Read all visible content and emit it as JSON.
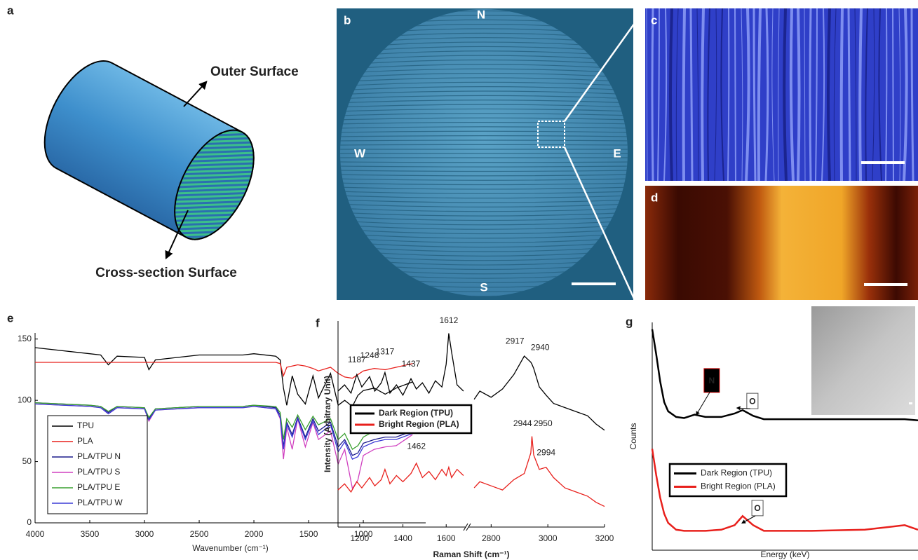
{
  "panels": {
    "a": {
      "label": "a",
      "outer": "Outer Surface",
      "cross": "Cross-section Surface"
    },
    "b": {
      "label": "b",
      "north": "N",
      "west": "W",
      "east": "E",
      "south": "S"
    },
    "c": {
      "label": "c"
    },
    "d": {
      "label": "d"
    }
  },
  "chart_data": [
    {
      "label": "e",
      "type": "line",
      "xlabel": "Wavenumber (cm⁻¹)",
      "x": [
        4000,
        3500,
        3400,
        3330,
        3250,
        3000,
        2960,
        2900,
        2500,
        2100,
        2000,
        1800,
        1760,
        1730,
        1700,
        1650,
        1600,
        1530,
        1460,
        1410,
        1300,
        1230,
        1170,
        1100,
        1050,
        1000,
        900,
        800,
        700,
        550
      ],
      "xlim": [
        4000,
        430
      ],
      "xticks": [
        4000,
        3500,
        3000,
        2500,
        2000,
        1500,
        1000
      ],
      "ylim": [
        0,
        155
      ],
      "yticks": [
        0,
        50,
        100,
        150
      ],
      "legend": "lower left",
      "series": [
        {
          "name": "TPU",
          "color": "#000000",
          "values": [
            143,
            138,
            137,
            129,
            136,
            135,
            125,
            133,
            137,
            137,
            138,
            136,
            133,
            110,
            96,
            120,
            105,
            97,
            120,
            102,
            122,
            96,
            100,
            95,
            104,
            108,
            110,
            105,
            110,
            115
          ]
        },
        {
          "name": "PLA",
          "color": "#e8201c",
          "values": [
            131,
            131,
            131,
            131,
            131,
            131,
            131,
            131,
            131,
            131,
            131,
            131,
            130,
            120,
            127,
            128,
            129,
            128,
            126,
            124,
            127,
            122,
            119,
            118,
            121,
            124,
            126,
            125,
            127,
            130
          ]
        },
        {
          "name": "PLA/TPU N",
          "color": "#1a1a8c",
          "values": [
            98,
            96,
            95,
            90,
            95,
            94,
            85,
            93,
            95,
            95,
            96,
            94,
            88,
            62,
            82,
            72,
            86,
            70,
            85,
            75,
            82,
            62,
            68,
            55,
            57,
            65,
            68,
            70,
            70,
            75
          ]
        },
        {
          "name": "PLA/TPU S",
          "color": "#d040c0",
          "values": [
            97,
            95,
            94,
            89,
            94,
            93,
            83,
            92,
            94,
            94,
            95,
            93,
            85,
            52,
            78,
            60,
            85,
            62,
            82,
            68,
            75,
            48,
            60,
            28,
            35,
            55,
            60,
            62,
            63,
            72
          ]
        },
        {
          "name": "PLA/TPU E",
          "color": "#3aa030",
          "values": [
            98,
            96,
            95,
            91,
            95,
            94,
            86,
            93,
            95,
            95,
            96,
            95,
            90,
            68,
            85,
            78,
            88,
            76,
            87,
            80,
            85,
            68,
            73,
            60,
            63,
            70,
            75,
            76,
            75,
            78
          ]
        },
        {
          "name": "PLA/TPU W",
          "color": "#3b3bd6",
          "values": [
            97,
            95,
            94,
            89,
            94,
            93,
            84,
            92,
            94,
            94,
            95,
            93,
            86,
            60,
            80,
            70,
            85,
            68,
            83,
            72,
            80,
            58,
            66,
            52,
            54,
            62,
            66,
            68,
            68,
            73
          ]
        }
      ]
    },
    {
      "label": "f",
      "type": "line",
      "ylabel": "Intensity (Arbitrary Unit)",
      "xlabel": "Raman Shift (cm⁻¹)",
      "x": [
        1100,
        1130,
        1160,
        1187,
        1210,
        1246,
        1270,
        1300,
        1317,
        1340,
        1370,
        1400,
        1437,
        1462,
        1490,
        1520,
        1550,
        1580,
        1600,
        1612,
        1625,
        1650,
        1680,
        2720,
        2740,
        2760,
        2800,
        2840,
        2880,
        2917,
        2940,
        2944,
        2950,
        2970,
        2994,
        3020,
        3060,
        3100,
        3140,
        3170,
        3200
      ],
      "xlim": [
        1100,
        3200
      ],
      "xbreak": [
        1690,
        2720
      ],
      "xticks": [
        1200,
        1400,
        1600,
        2800,
        3000,
        3200
      ],
      "ylim": [
        0,
        10
      ],
      "legend": "center left",
      "series": [
        {
          "name": "Dark Region (TPU)",
          "color": "#000000",
          "values": [
            6.6,
            6.9,
            6.5,
            7.4,
            6.8,
            7.3,
            6.6,
            7.0,
            7.5,
            6.5,
            6.9,
            6.4,
            7.2,
            6.7,
            7.0,
            6.5,
            7.1,
            6.8,
            7.9,
            9.4,
            8.5,
            6.9,
            6.6,
            null,
            6.2,
            6.6,
            6.3,
            6.7,
            7.4,
            8.3,
            8.0,
            7.9,
            7.7,
            6.8,
            6.4,
            6.0,
            5.8,
            5.6,
            5.4,
            5.0,
            4.7
          ]
        },
        {
          "name": "Bright Region (PLA)",
          "color": "#e8201c",
          "values": [
            1.8,
            2.1,
            1.7,
            2.2,
            1.9,
            2.4,
            2.0,
            2.3,
            2.8,
            2.1,
            2.5,
            2.2,
            2.6,
            3.1,
            2.4,
            2.7,
            2.3,
            2.8,
            2.5,
            2.9,
            2.4,
            2.8,
            2.5,
            null,
            1.9,
            2.2,
            2.0,
            1.8,
            2.3,
            2.6,
            3.6,
            4.4,
            3.5,
            2.8,
            2.9,
            2.4,
            1.9,
            1.7,
            1.5,
            1.2,
            1.0
          ]
        }
      ],
      "peak_labels": [
        {
          "x": 1187,
          "y": 8.1
        },
        {
          "x": 1246,
          "y": 8.3
        },
        {
          "x": 1317,
          "y": 8.5
        },
        {
          "x": 1437,
          "y": 7.9
        },
        {
          "x": 1612,
          "y": 10.0
        },
        {
          "x": 2917,
          "y": 9.0
        },
        {
          "x": 2940,
          "y": 8.7
        },
        {
          "x": 1462,
          "y": 3.9
        },
        {
          "x": 2944,
          "y": 5.0
        },
        {
          "x": 2950,
          "y": 5.0
        },
        {
          "x": 2994,
          "y": 3.6
        }
      ]
    },
    {
      "label": "g",
      "type": "line",
      "ylabel": "Counts",
      "xlabel": "Energy (keV)",
      "x": [
        0,
        0.15,
        0.3,
        0.45,
        0.6,
        0.9,
        1.2,
        1.6,
        2.0,
        2.6,
        3.1,
        3.4,
        3.8,
        4.2,
        6,
        8,
        9.5,
        10
      ],
      "xlim": [
        0,
        10
      ],
      "ylim": [
        0,
        10
      ],
      "legend": "center left",
      "series": [
        {
          "name": "Dark Region (TPU)",
          "color": "#000000",
          "values": [
            9.7,
            8.6,
            7.4,
            6.5,
            6.1,
            5.85,
            5.8,
            5.95,
            5.85,
            5.85,
            6.0,
            6.15,
            5.9,
            5.75,
            5.75,
            5.75,
            5.75,
            5.7
          ]
        },
        {
          "name": "Bright Region (PLA)",
          "color": "#e8201c",
          "values": [
            4.45,
            3.3,
            2.3,
            1.6,
            1.2,
            0.9,
            0.85,
            0.85,
            0.85,
            0.9,
            1.1,
            1.5,
            1.1,
            0.85,
            0.85,
            0.9,
            1.1,
            0.9
          ]
        }
      ],
      "annotations": [
        {
          "text": "N",
          "x": 2.24,
          "y": 7.45,
          "fill": "#000000"
        },
        {
          "text": "O",
          "x": 3.77,
          "y": 6.55
        },
        {
          "text": "O",
          "x": 3.96,
          "y": 1.85
        }
      ]
    }
  ]
}
